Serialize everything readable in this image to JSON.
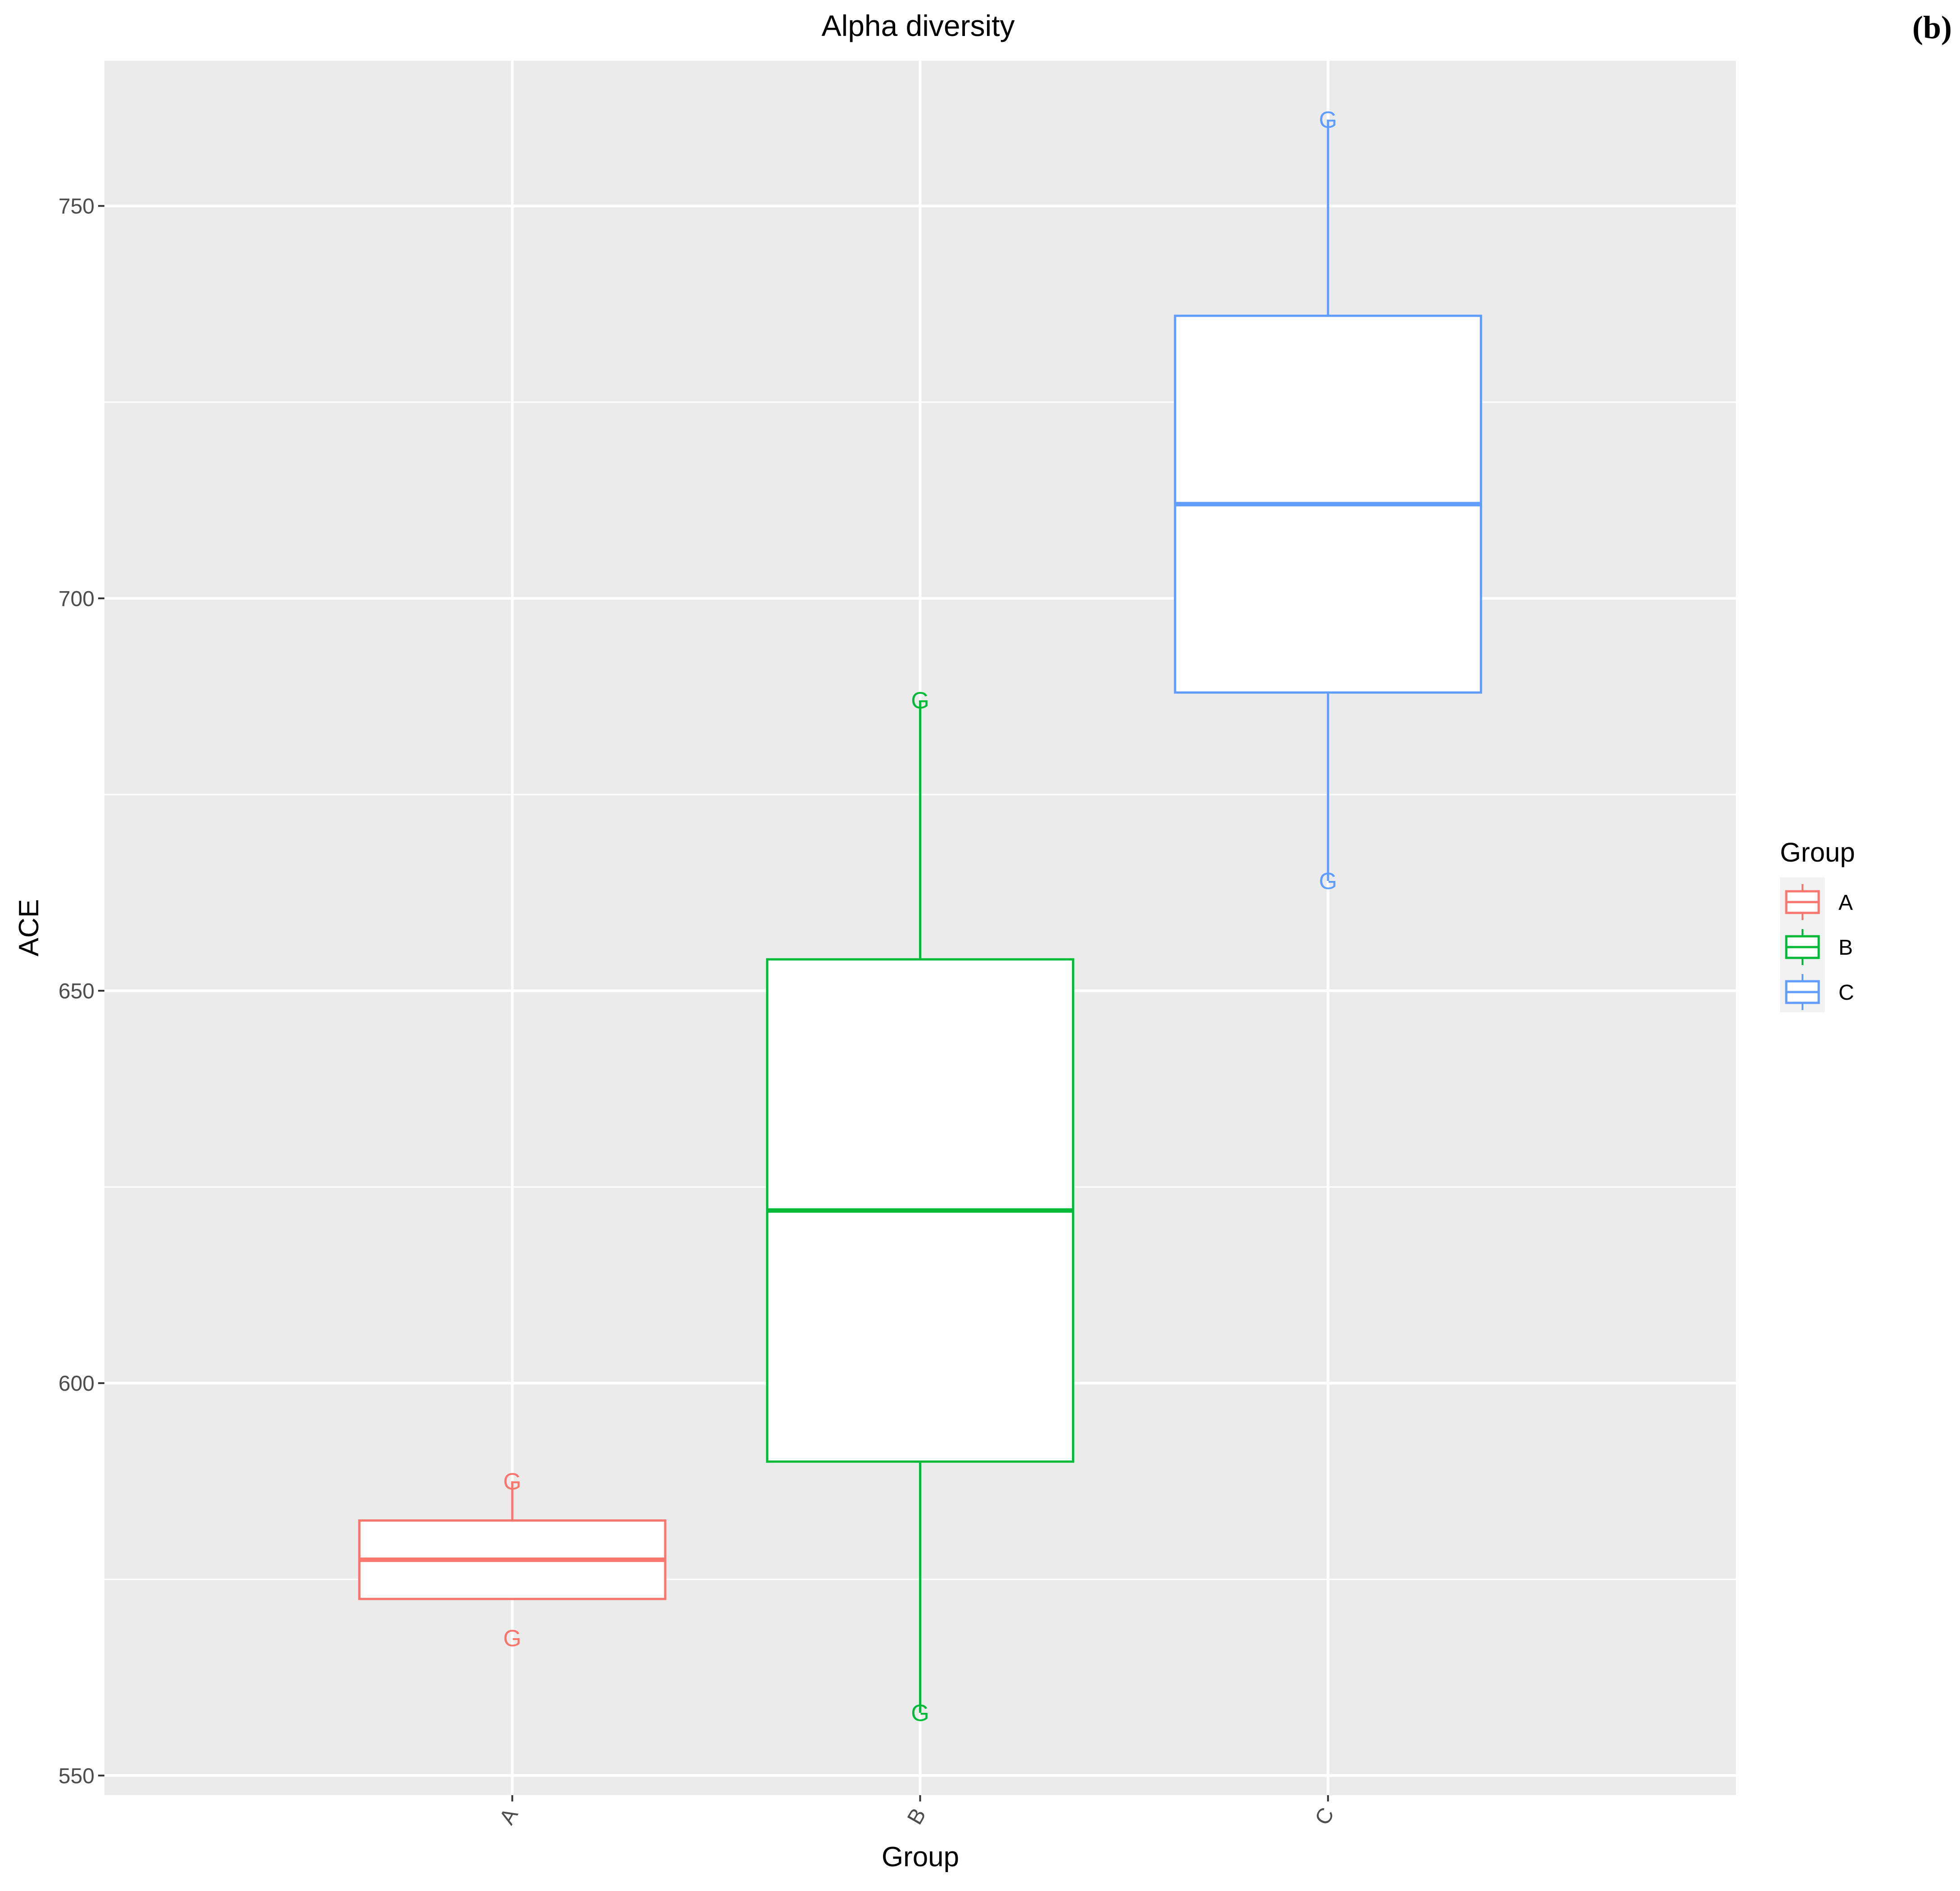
{
  "panel_label": "(b)",
  "chart_data": {
    "type": "boxplot",
    "title": "Alpha diversity",
    "xlabel": "Group",
    "ylabel": "ACE",
    "ylim": [
      547.5,
      768.5
    ],
    "yticks": [
      550,
      600,
      650,
      700,
      750
    ],
    "categories": [
      "A",
      "B",
      "C"
    ],
    "boxes": [
      {
        "category": "A",
        "color": "#F8766D",
        "whisker_low": 572.5,
        "q1": 572.5,
        "median": 577.5,
        "q3": 582.5,
        "whisker_high": 587.5,
        "points": [
          587.5,
          567.5
        ],
        "point_label": "G"
      },
      {
        "category": "B",
        "color": "#00BA38",
        "whisker_low": 558.0,
        "q1": 590.0,
        "median": 622.0,
        "q3": 654.0,
        "whisker_high": 687.0,
        "points": [
          687.0,
          558.0
        ],
        "point_label": "G"
      },
      {
        "category": "C",
        "color": "#619CFF",
        "whisker_low": 664.0,
        "q1": 688.0,
        "median": 712.0,
        "q3": 736.0,
        "whisker_high": 761.0,
        "points": [
          761.0,
          664.0
        ],
        "point_label": "G"
      }
    ],
    "grid": true,
    "panel_background": "#EBEBEB",
    "legend": {
      "title": "Group",
      "position": "right",
      "entries": [
        {
          "label": "A",
          "color": "#F8766D"
        },
        {
          "label": "B",
          "color": "#00BA38"
        },
        {
          "label": "C",
          "color": "#619CFF"
        }
      ]
    }
  }
}
